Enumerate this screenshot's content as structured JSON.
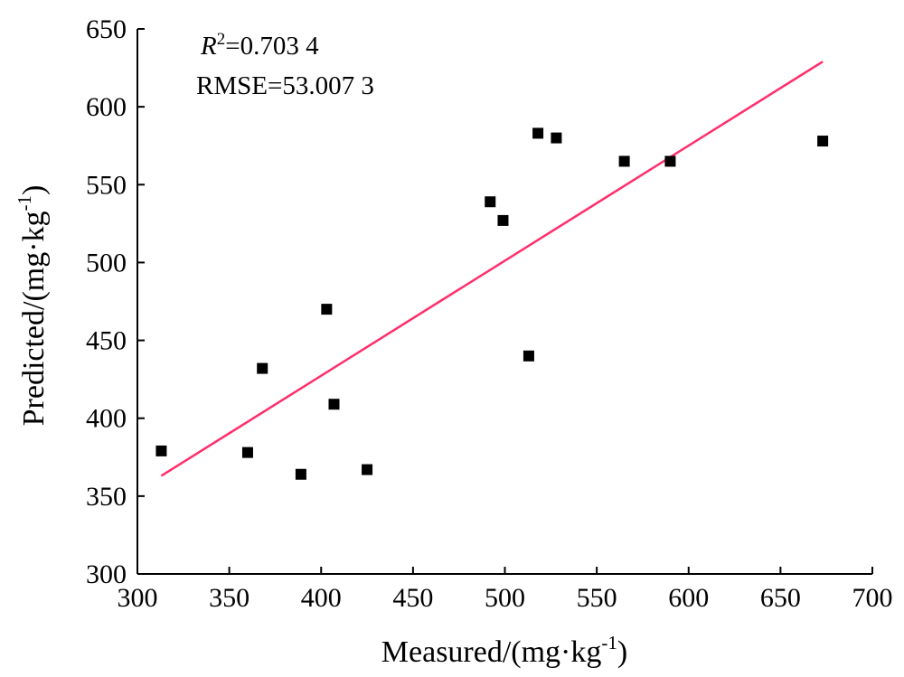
{
  "chart_data": {
    "type": "scatter",
    "xlabel": "Measured/(mg·kg",
    "xlabel_sup": "-1",
    "xlabel_tail": ")",
    "ylabel": "Predicted/(mg·kg",
    "ylabel_sup": "-1",
    "ylabel_tail": ")",
    "xlim": [
      300,
      700
    ],
    "ylim": [
      300,
      650
    ],
    "xticks": [
      300,
      350,
      400,
      450,
      500,
      550,
      600,
      650,
      700
    ],
    "yticks": [
      300,
      350,
      400,
      450,
      500,
      550,
      600,
      650
    ],
    "grid": false,
    "annotations": {
      "r2_symbol": "R",
      "r2_sup": "2",
      "r2_value": "=0.703 4",
      "rmse": "RMSE=53.007 3"
    },
    "point_color": "#000000",
    "fit_line_color": "#ff2d6b",
    "series": [
      {
        "marker": "square",
        "x": [
          313,
          360,
          368,
          389,
          403,
          407,
          425,
          492,
          499,
          513,
          518,
          528,
          565,
          590,
          673
        ],
        "y": [
          379,
          378,
          432,
          364,
          470,
          409,
          367,
          539,
          527,
          440,
          583,
          580,
          565,
          565,
          578
        ]
      }
    ],
    "fit_line": {
      "x": [
        313,
        673
      ],
      "y": [
        363,
        629
      ]
    }
  }
}
